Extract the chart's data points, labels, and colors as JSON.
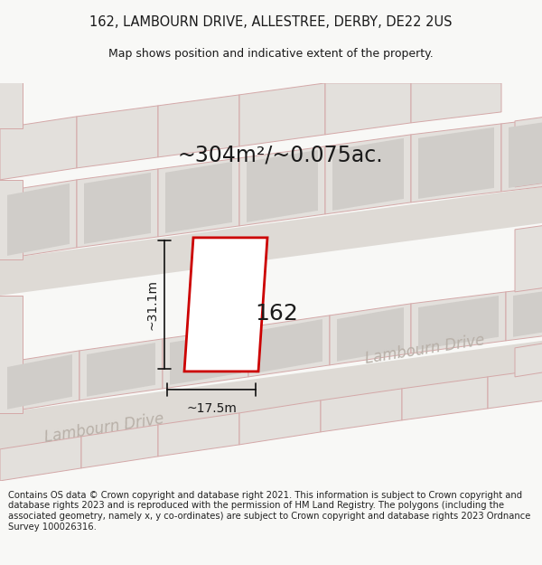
{
  "title_line1": "162, LAMBOURN DRIVE, ALLESTREE, DERBY, DE22 2US",
  "title_line2": "Map shows position and indicative extent of the property.",
  "footer_text": "Contains OS data © Crown copyright and database right 2021. This information is subject to Crown copyright and database rights 2023 and is reproduced with the permission of HM Land Registry. The polygons (including the associated geometry, namely x, y co-ordinates) are subject to Crown copyright and database rights 2023 Ordnance Survey 100026316.",
  "area_text": "~304m²/~0.075ac.",
  "label_162": "162",
  "dim_width": "~17.5m",
  "dim_height": "~31.1m",
  "road_label1": "Lambourn Drive",
  "road_label2": "Lambourn Drive",
  "bg_color": "#f0eeeb",
  "map_bg": "#edeae6",
  "block_fill": "#e3e0dc",
  "block_outline": "#d4a8a8",
  "inner_fill": "#d0cdc9",
  "road_fill": "#dedad5",
  "plot_outline_color": "#cc0000",
  "plot_fill": "#ffffff",
  "dim_line_color": "#1a1a1a",
  "text_color": "#1a1a1a",
  "road_text_color": "#b8b0a8",
  "title_fontsize": 10.5,
  "subtitle_fontsize": 9,
  "area_fontsize": 17,
  "label_fontsize": 18,
  "dim_fontsize": 10,
  "road_fontsize": 12,
  "footer_fontsize": 7.2
}
